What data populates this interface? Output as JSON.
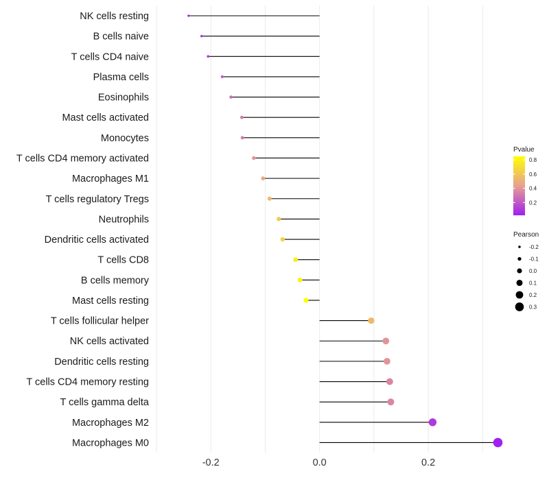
{
  "chart_data": {
    "type": "lollipop",
    "title": "",
    "xlabel": "",
    "ylabel": "",
    "xlim": [
      -0.3,
      0.34
    ],
    "x_ticks": [
      -0.2,
      0.0,
      0.2
    ],
    "x_tick_labels": [
      "-0.2",
      "0.0",
      "0.2"
    ],
    "categories": [
      "NK cells resting",
      "B cells naive",
      "T cells CD4 naive",
      "Plasma cells",
      "Eosinophils",
      "Mast cells activated",
      "Monocytes",
      "T cells CD4 memory activated",
      "Macrophages M1",
      "T cells regulatory  Tregs ",
      "Neutrophils",
      "Dendritic cells activated",
      "T cells CD8",
      "B cells memory",
      "Mast cells resting",
      "T cells follicular helper",
      "NK cells activated",
      "Dendritic cells resting",
      "T cells CD4 memory resting",
      "T cells gamma delta",
      "Macrophages M2",
      "Macrophages M0"
    ],
    "values": [
      -0.241,
      -0.217,
      -0.205,
      -0.179,
      -0.163,
      -0.143,
      -0.142,
      -0.121,
      -0.104,
      -0.092,
      -0.075,
      -0.068,
      -0.044,
      -0.036,
      -0.025,
      0.095,
      0.122,
      0.124,
      0.129,
      0.131,
      0.208,
      0.328
    ],
    "pvalues": [
      0.02,
      0.1,
      0.12,
      0.22,
      0.27,
      0.32,
      0.32,
      0.4,
      0.48,
      0.54,
      0.62,
      0.65,
      0.78,
      0.8,
      0.85,
      0.55,
      0.4,
      0.4,
      0.35,
      0.35,
      0.1,
      0.02
    ],
    "legend": {
      "color": {
        "title": "Pvalue",
        "ticks": [
          "0.2",
          "0.4",
          "0.6",
          "0.8"
        ],
        "tick_values": [
          0.2,
          0.4,
          0.6,
          0.8
        ],
        "range": [
          0.02,
          0.85
        ],
        "low_color": "#a020f0",
        "mid_color": "#e8a090",
        "high_color": "#ffff00",
        "placement": "right"
      },
      "size": {
        "title": "Pearson",
        "ticks": [
          "-0.2",
          "-0.1",
          "0.0",
          "0.1",
          "0.2",
          "0.3"
        ],
        "tick_values": [
          -0.2,
          -0.1,
          0.0,
          0.1,
          0.2,
          0.3
        ],
        "placement": "right"
      }
    },
    "grid": true
  }
}
